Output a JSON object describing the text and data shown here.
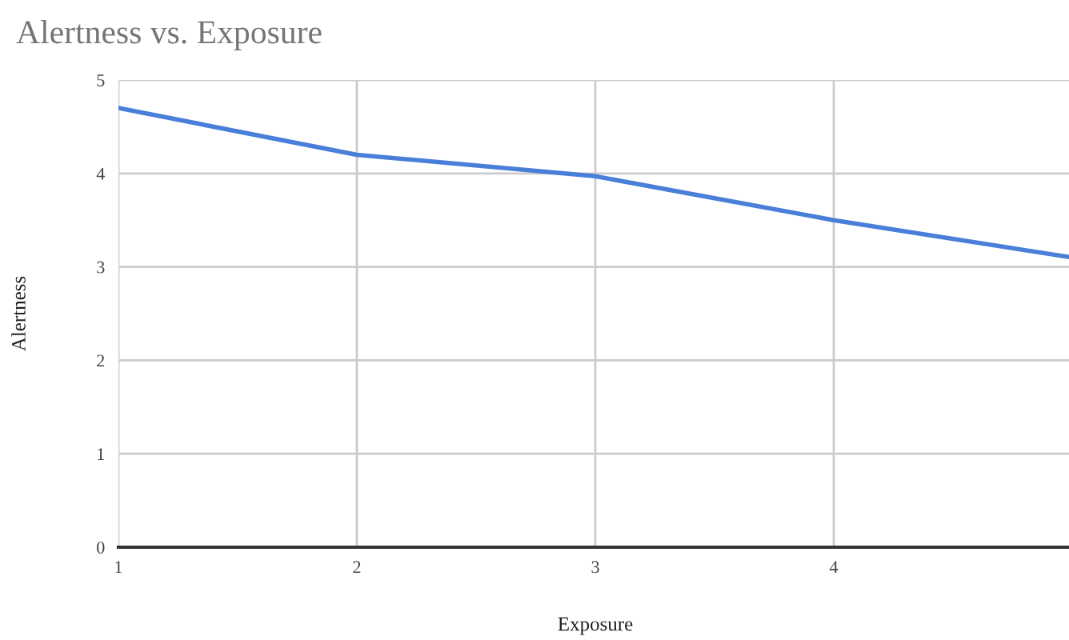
{
  "chart_data": {
    "type": "line",
    "title": "Alertness vs. Exposure",
    "xlabel": "Exposure",
    "ylabel": "Alertness",
    "x": [
      1,
      2,
      3,
      4,
      5
    ],
    "series": [
      {
        "color": "#4a7fd9",
        "values": [
          4.7,
          4.2,
          3.97,
          3.5,
          3.1
        ]
      }
    ],
    "xlim": [
      1,
      5
    ],
    "xticks": [
      1,
      2,
      3,
      4
    ],
    "ylim": [
      0,
      5
    ],
    "yticks": [
      0,
      1,
      2,
      3,
      4,
      5
    ],
    "grid": true,
    "marker": "none",
    "line_style": "solid"
  }
}
